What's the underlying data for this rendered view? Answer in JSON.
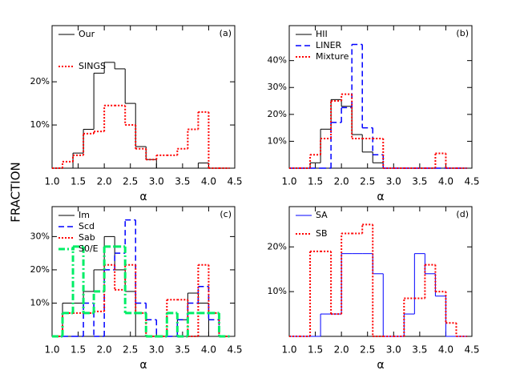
{
  "ylabel": "FRACTION",
  "chart_data": [
    {
      "type": "histogram",
      "label": "(a)",
      "xlabel": "α",
      "bins": [
        1,
        1.2,
        1.4,
        1.6,
        1.8,
        2,
        2.2,
        2.4,
        2.6,
        2.8,
        3,
        3.2,
        3.4,
        3.6,
        3.8,
        4,
        4.2,
        4.4
      ],
      "xlim": [
        1,
        4.5
      ],
      "ylim": [
        0,
        33
      ],
      "xticks": [
        {
          "value": 1,
          "label": "1.0"
        },
        1.5,
        {
          "value": 2,
          "label": "2.0"
        },
        2.5,
        {
          "value": 3,
          "label": "3.0"
        },
        3.5,
        {
          "value": 4,
          "label": "4.0"
        },
        4.5
      ],
      "yticks": [
        {
          "value": 10,
          "label": "10%"
        },
        {
          "value": 20,
          "label": "20%"
        }
      ],
      "series": [
        {
          "name": "Our",
          "color": "#000000",
          "linestyle": "solid",
          "values": [
            0,
            0,
            3.5,
            9,
            22,
            24.5,
            23,
            15,
            5,
            2,
            0,
            0,
            0,
            0,
            1.2,
            0,
            0
          ]
        },
        {
          "name": "SINGS",
          "color": "#ff0000",
          "linestyle": "dotted",
          "values": [
            0,
            1.5,
            3,
            8,
            8.5,
            14.5,
            14.5,
            10,
            4.5,
            2,
            3,
            3,
            4.5,
            9,
            13,
            0,
            0
          ]
        }
      ]
    },
    {
      "type": "histogram",
      "label": "(b)",
      "xlabel": "α",
      "bins": [
        1,
        1.2,
        1.4,
        1.6,
        1.8,
        2,
        2.2,
        2.4,
        2.6,
        2.8,
        3,
        3.2,
        3.4,
        3.6,
        3.8,
        4,
        4.2,
        4.4
      ],
      "xlim": [
        1,
        4.5
      ],
      "ylim": [
        0,
        53
      ],
      "xticks": [
        {
          "value": 1,
          "label": "1.0"
        },
        1.5,
        {
          "value": 2,
          "label": "2.0"
        },
        2.5,
        {
          "value": 3,
          "label": "3.0"
        },
        3.5,
        {
          "value": 4,
          "label": "4.0"
        },
        4.5
      ],
      "yticks": [
        {
          "value": 10,
          "label": "10%"
        },
        {
          "value": 20,
          "label": "20%"
        },
        {
          "value": 30,
          "label": "30%"
        },
        {
          "value": 40,
          "label": "40%"
        }
      ],
      "series": [
        {
          "name": "HII",
          "color": "#000000",
          "linestyle": "solid",
          "values": [
            0,
            0,
            2,
            14.5,
            25.5,
            23,
            12.5,
            6,
            2,
            0,
            0,
            0,
            0,
            0,
            0,
            0,
            0
          ]
        },
        {
          "name": "LINER",
          "color": "#0000ff",
          "linestyle": "dashed",
          "values": [
            0,
            0,
            0,
            0,
            17,
            22.5,
            46,
            15,
            5,
            0,
            0,
            0,
            0,
            0,
            0,
            0,
            0
          ]
        },
        {
          "name": "Mixture",
          "color": "#ff0000",
          "linestyle": "dotted",
          "values": [
            0,
            0,
            5,
            11,
            25,
            27.5,
            11,
            11,
            11,
            0,
            0,
            0,
            0,
            0,
            5.5,
            0,
            0
          ]
        }
      ]
    },
    {
      "type": "histogram",
      "label": "(c)",
      "xlabel": "α",
      "bins": [
        1,
        1.2,
        1.4,
        1.6,
        1.8,
        2,
        2.2,
        2.4,
        2.6,
        2.8,
        3,
        3.2,
        3.4,
        3.6,
        3.8,
        4,
        4.2,
        4.4
      ],
      "xlim": [
        1,
        4.5
      ],
      "ylim": [
        0,
        39
      ],
      "xticks": [
        {
          "value": 1,
          "label": "1.0"
        },
        1.5,
        {
          "value": 2,
          "label": "2.0"
        },
        2.5,
        {
          "value": 3,
          "label": "3.0"
        },
        3.5,
        {
          "value": 4,
          "label": "4.0"
        },
        4.5
      ],
      "yticks": [
        {
          "value": 10,
          "label": "10%"
        },
        {
          "value": 20,
          "label": "20%"
        },
        {
          "value": 30,
          "label": "30%"
        }
      ],
      "series": [
        {
          "name": "Im",
          "color": "#000000",
          "linestyle": "solid",
          "values": [
            0,
            10,
            10,
            13.5,
            20,
            30,
            20,
            13.5,
            0,
            0,
            0,
            0,
            5,
            13,
            10,
            0,
            0
          ]
        },
        {
          "name": "Scd",
          "color": "#0000ff",
          "linestyle": "dashed",
          "values": [
            0,
            0,
            0,
            10,
            0,
            20,
            25,
            35,
            10,
            5,
            0,
            0,
            5,
            10,
            15,
            5,
            0
          ]
        },
        {
          "name": "Sab",
          "color": "#ff0000",
          "linestyle": "dotted",
          "values": [
            0,
            7,
            7,
            7,
            7.5,
            21.5,
            14,
            21.5,
            7,
            0,
            0,
            11,
            11,
            0,
            21.5,
            7,
            0
          ]
        },
        {
          "name": "S0/E",
          "color": "#00ee66",
          "linestyle": "dashdot",
          "values": [
            0,
            7,
            27,
            7,
            13.5,
            27,
            27,
            7,
            7,
            0,
            0,
            7,
            0,
            7,
            7,
            7,
            0
          ]
        }
      ]
    },
    {
      "type": "histogram",
      "label": "(d)",
      "xlabel": "α",
      "bins": [
        1,
        1.2,
        1.4,
        1.6,
        1.8,
        2,
        2.2,
        2.4,
        2.6,
        2.8,
        3,
        3.2,
        3.4,
        3.6,
        3.8,
        4,
        4.2,
        4.4
      ],
      "xlim": [
        1,
        4.5
      ],
      "ylim": [
        0,
        29
      ],
      "xticks": [
        {
          "value": 1,
          "label": "1.0"
        },
        1.5,
        {
          "value": 2,
          "label": "2.0"
        },
        2.5,
        {
          "value": 3,
          "label": "3.0"
        },
        3.5,
        {
          "value": 4,
          "label": "4.0"
        },
        4.5
      ],
      "yticks": [
        {
          "value": 10,
          "label": "10%"
        },
        {
          "value": 20,
          "label": "20%"
        }
      ],
      "series": [
        {
          "name": "SA",
          "color": "#0000ff",
          "linestyle": "solid",
          "values": [
            0,
            0,
            0,
            5,
            5,
            18.5,
            18.5,
            18.5,
            14,
            0,
            0,
            5,
            18.5,
            14,
            9,
            0,
            0
          ]
        },
        {
          "name": "SB",
          "color": "#ff0000",
          "linestyle": "dotted",
          "values": [
            0,
            0,
            19,
            19,
            5,
            23,
            23,
            25,
            0,
            0,
            0,
            8.5,
            8.5,
            16,
            10,
            3,
            0
          ]
        }
      ]
    }
  ]
}
